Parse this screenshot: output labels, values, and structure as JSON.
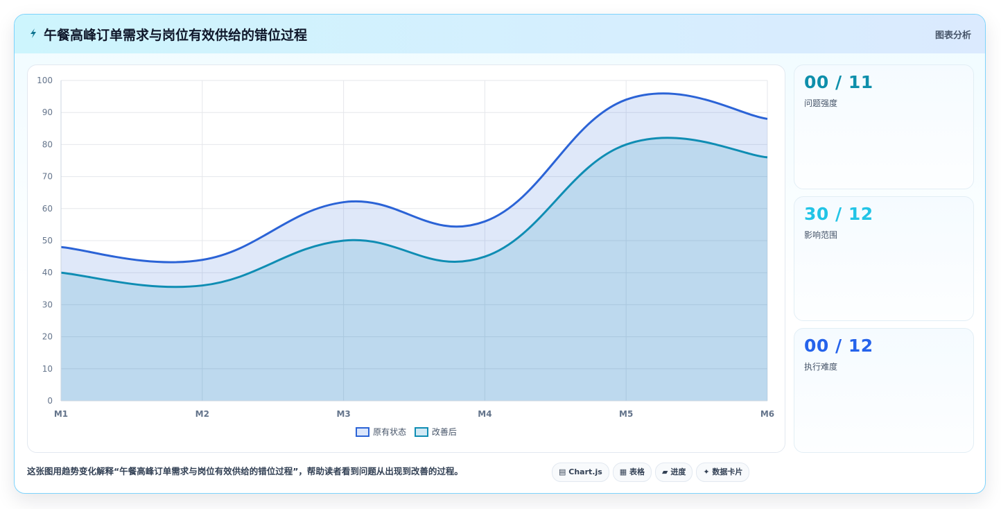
{
  "header": {
    "title": "午餐高峰订单需求与岗位有效供给的错位过程",
    "link_label": "图表分析"
  },
  "chart_data": {
    "type": "area",
    "categories": [
      "M1",
      "M2",
      "M3",
      "M4",
      "M5",
      "M6"
    ],
    "series": [
      {
        "name": "原有状态",
        "values": [
          48,
          44,
          62,
          56,
          94,
          88
        ],
        "color": "#2b63d6"
      },
      {
        "name": "改善后",
        "values": [
          40,
          36,
          50,
          45,
          80,
          76
        ],
        "color": "#0f8db3"
      }
    ],
    "ylim": [
      0,
      100
    ],
    "yticks": [
      0,
      10,
      20,
      30,
      40,
      50,
      60,
      70,
      80,
      90,
      100
    ],
    "grid": true,
    "legend": "bottom"
  },
  "stats": [
    {
      "value": "00 / 11",
      "label": "问题强度",
      "color": "#0e8fab"
    },
    {
      "value": "30 / 12",
      "label": "影响范围",
      "color": "#22c4e6"
    },
    {
      "value": "00 / 12",
      "label": "执行难度",
      "color": "#2563eb"
    }
  ],
  "footnote": "这张图用趋势变化解释“午餐高峰订单需求与岗位有效供给的错位过程”，帮助读者看到问题从出现到改善的过程。",
  "chips": [
    {
      "icon": "▤",
      "label": "Chart.js"
    },
    {
      "icon": "▦",
      "label": "表格"
    },
    {
      "icon": "▰",
      "label": "进度"
    },
    {
      "icon": "✦",
      "label": "数据卡片"
    }
  ]
}
